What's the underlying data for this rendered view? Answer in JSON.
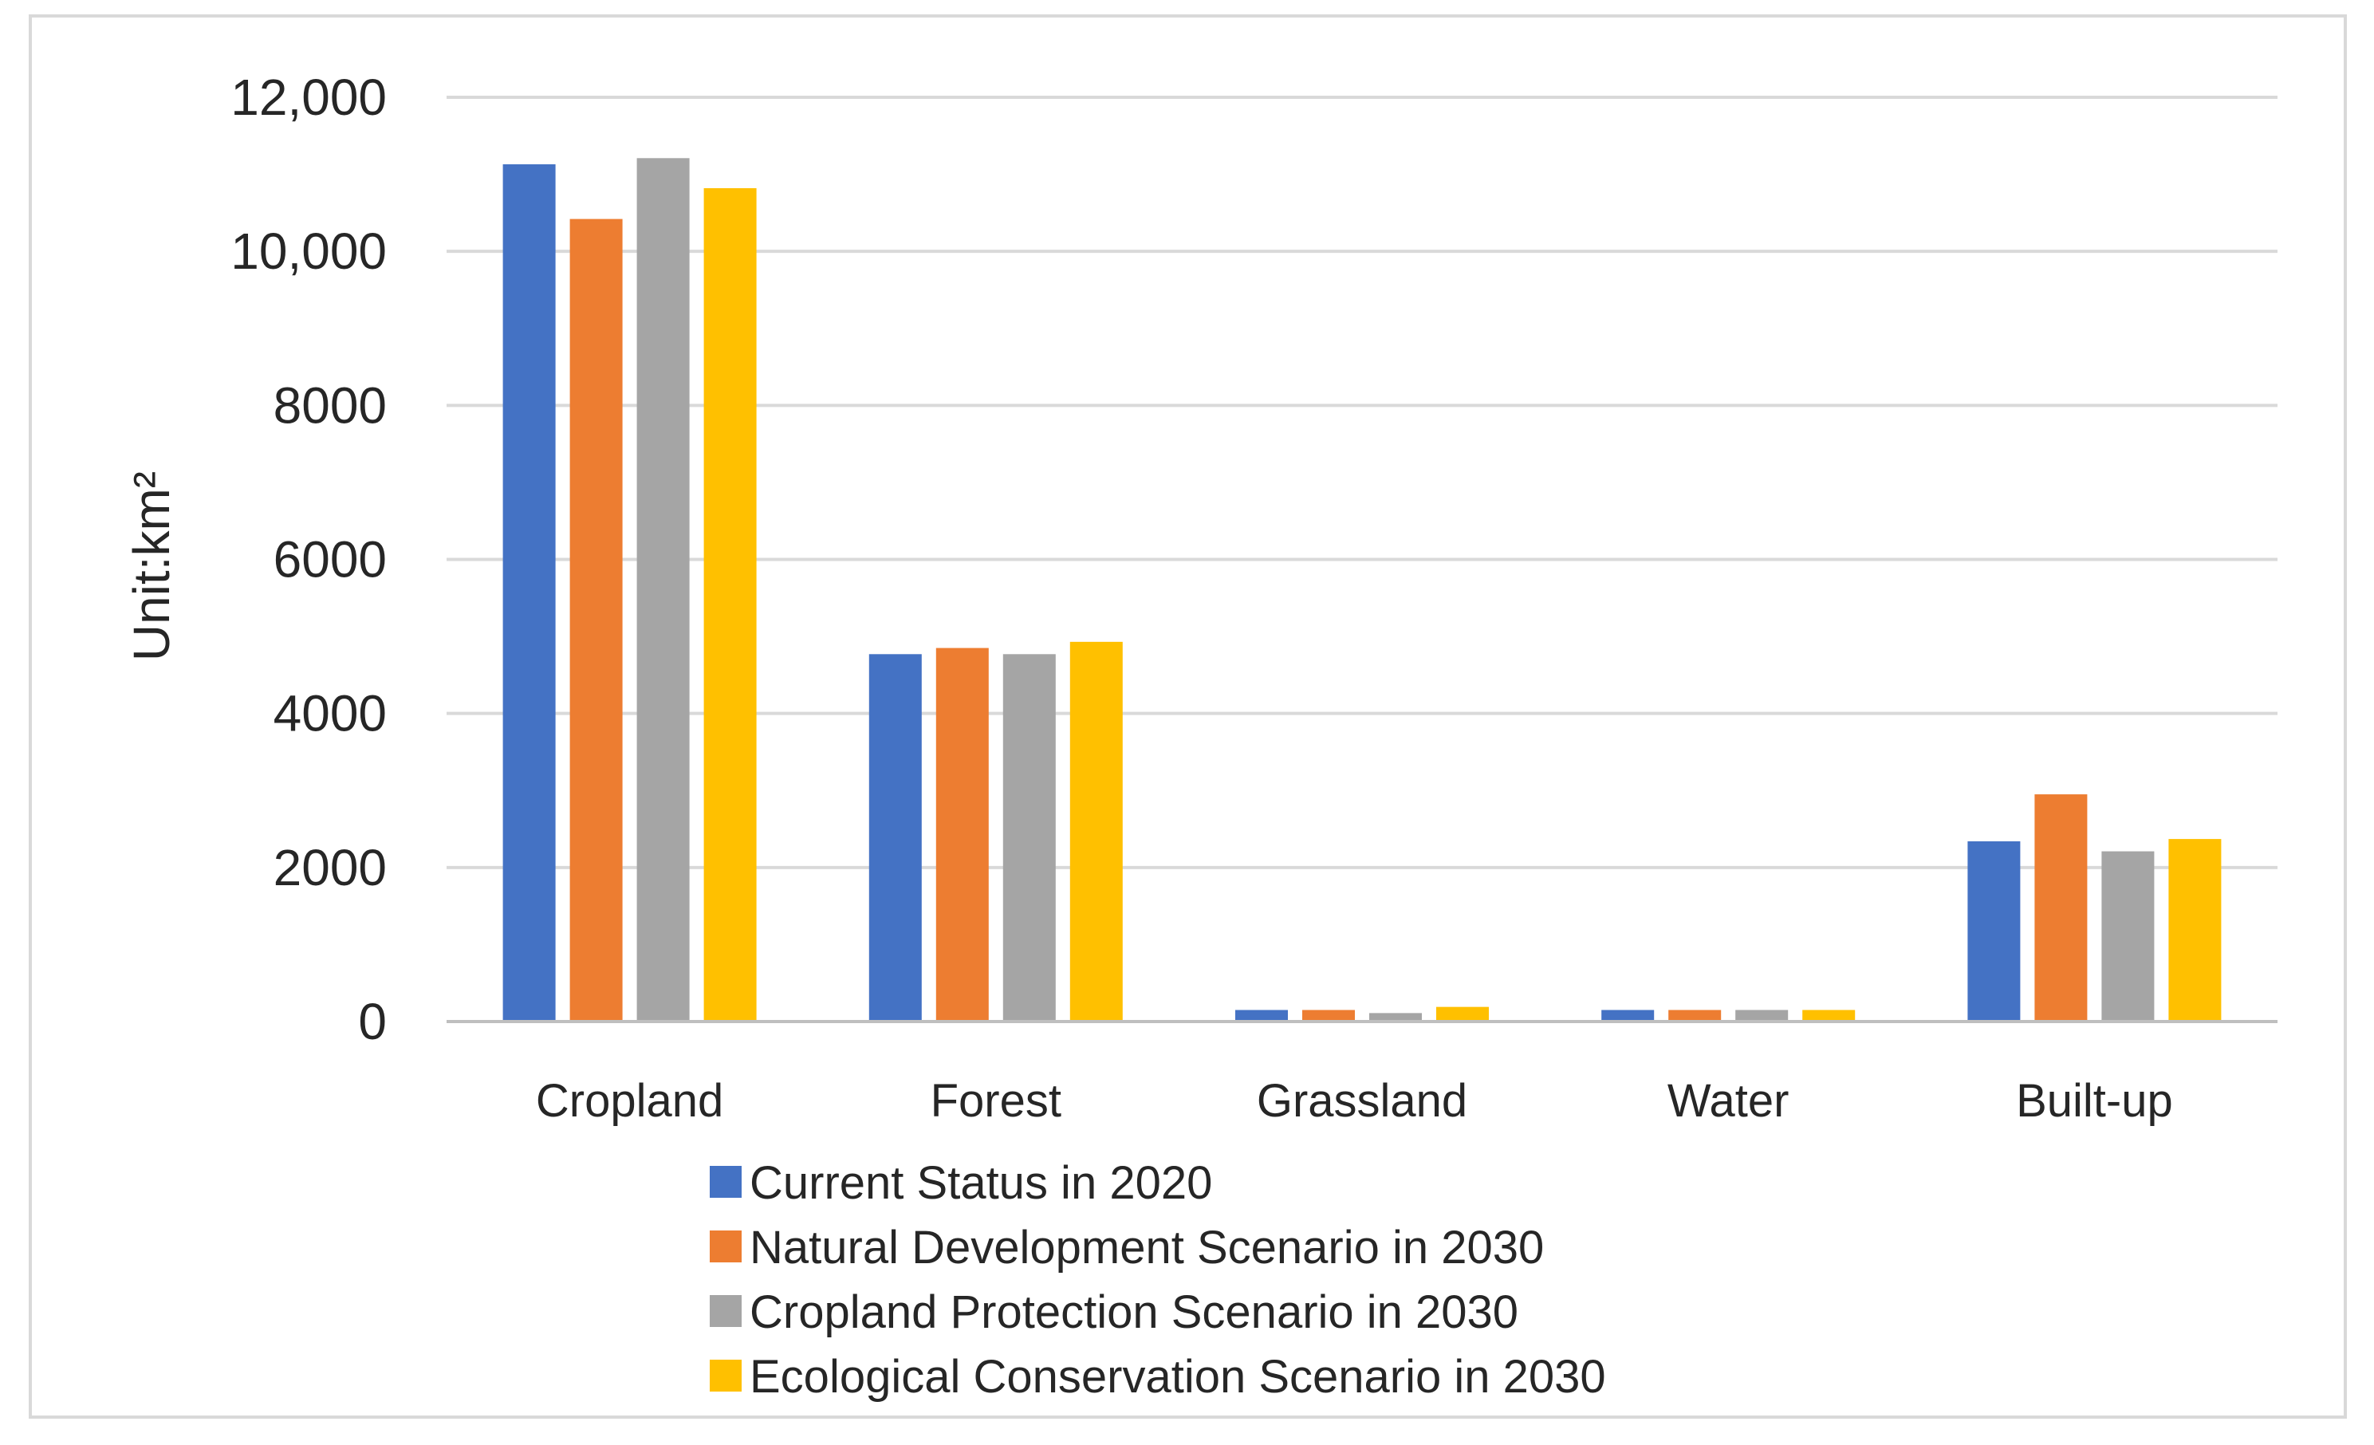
{
  "chart_data": {
    "type": "bar",
    "title": "",
    "xlabel": "",
    "ylabel": "Unit:km²",
    "ylim": [
      0,
      12000
    ],
    "yticks": [
      0,
      2000,
      4000,
      6000,
      8000,
      10000,
      12000
    ],
    "ytick_labels": [
      "0",
      "2000",
      "4000",
      "6000",
      "8000",
      "10,000",
      "12,000"
    ],
    "grid": true,
    "legend_position": "bottom",
    "categories": [
      "Cropland",
      "Forest",
      "Grassland",
      "Water",
      "Built-up"
    ],
    "series": [
      {
        "name": "Current Status in 2020",
        "color": "#4472C4",
        "values": [
          11130,
          4770,
          150,
          150,
          2340
        ]
      },
      {
        "name": "Natural Development Scenario in 2030",
        "color": "#ED7D31",
        "values": [
          10420,
          4850,
          150,
          150,
          2950
        ]
      },
      {
        "name": "Cropland Protection Scenario in 2030",
        "color": "#A5A5A5",
        "values": [
          11210,
          4770,
          110,
          150,
          2210
        ]
      },
      {
        "name": "Ecological Conservation Scenario in 2030",
        "color": "#FFC000",
        "values": [
          10820,
          4930,
          190,
          150,
          2370
        ]
      }
    ]
  }
}
